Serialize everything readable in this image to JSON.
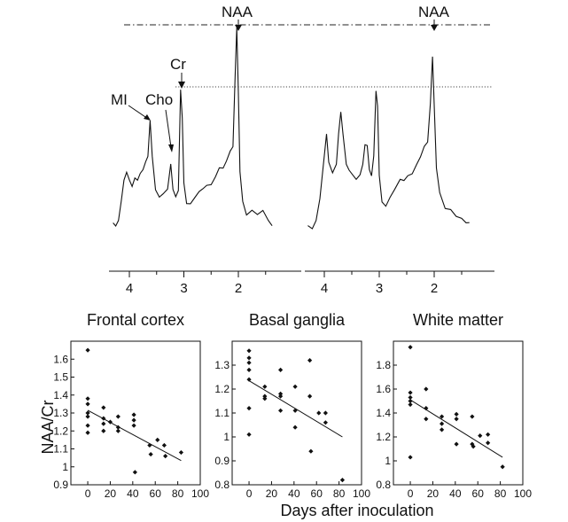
{
  "spectra": {
    "peak_labels": {
      "mi": "MI",
      "cho": "Cho",
      "cr": "Cr",
      "naa_left": "NAA",
      "naa_right": "NAA"
    },
    "axis_ticks": [
      4,
      3,
      2
    ],
    "reference_lines": [
      "NAA peak height",
      "Cr peak height"
    ],
    "left_spectrum": [
      [
        4.3,
        0.12
      ],
      [
        4.25,
        0.11
      ],
      [
        4.2,
        0.15
      ],
      [
        4.15,
        0.28
      ],
      [
        4.1,
        0.42
      ],
      [
        4.05,
        0.48
      ],
      [
        4.0,
        0.43
      ],
      [
        3.95,
        0.4
      ],
      [
        3.9,
        0.46
      ],
      [
        3.85,
        0.44
      ],
      [
        3.8,
        0.47
      ],
      [
        3.75,
        0.5
      ],
      [
        3.7,
        0.56
      ],
      [
        3.66,
        0.62
      ],
      [
        3.62,
        0.88
      ],
      [
        3.58,
        0.62
      ],
      [
        3.52,
        0.35
      ],
      [
        3.45,
        0.3
      ],
      [
        3.38,
        0.32
      ],
      [
        3.3,
        0.38
      ],
      [
        3.24,
        0.56
      ],
      [
        3.2,
        0.38
      ],
      [
        3.15,
        0.3
      ],
      [
        3.1,
        0.35
      ],
      [
        3.06,
        1.08
      ],
      [
        3.03,
        0.9
      ],
      [
        3.0,
        0.42
      ],
      [
        2.95,
        0.28
      ],
      [
        2.88,
        0.25
      ],
      [
        2.8,
        0.3
      ],
      [
        2.72,
        0.33
      ],
      [
        2.65,
        0.38
      ],
      [
        2.58,
        0.4
      ],
      [
        2.5,
        0.42
      ],
      [
        2.42,
        0.45
      ],
      [
        2.35,
        0.52
      ],
      [
        2.28,
        0.5
      ],
      [
        2.22,
        0.58
      ],
      [
        2.15,
        0.65
      ],
      [
        2.1,
        0.7
      ],
      [
        2.06,
        1.18
      ],
      [
        2.03,
        1.55
      ],
      [
        2.0,
        1.05
      ],
      [
        1.97,
        0.5
      ],
      [
        1.92,
        0.28
      ],
      [
        1.85,
        0.2
      ],
      [
        1.75,
        0.21
      ],
      [
        1.65,
        0.18
      ],
      [
        1.55,
        0.19
      ],
      [
        1.45,
        0.14
      ],
      [
        1.38,
        0.1
      ]
    ],
    "right_spectrum": [
      [
        4.3,
        0.1
      ],
      [
        4.22,
        0.09
      ],
      [
        4.15,
        0.15
      ],
      [
        4.08,
        0.3
      ],
      [
        4.0,
        0.6
      ],
      [
        3.96,
        0.76
      ],
      [
        3.92,
        0.56
      ],
      [
        3.85,
        0.5
      ],
      [
        3.78,
        0.56
      ],
      [
        3.74,
        0.78
      ],
      [
        3.7,
        0.92
      ],
      [
        3.66,
        0.76
      ],
      [
        3.6,
        0.54
      ],
      [
        3.55,
        0.52
      ],
      [
        3.48,
        0.48
      ],
      [
        3.42,
        0.45
      ],
      [
        3.35,
        0.46
      ],
      [
        3.3,
        0.54
      ],
      [
        3.26,
        0.68
      ],
      [
        3.22,
        0.7
      ],
      [
        3.18,
        0.52
      ],
      [
        3.14,
        0.48
      ],
      [
        3.1,
        0.6
      ],
      [
        3.06,
        1.08
      ],
      [
        3.03,
        0.96
      ],
      [
        3.0,
        0.48
      ],
      [
        2.95,
        0.28
      ],
      [
        2.88,
        0.26
      ],
      [
        2.8,
        0.3
      ],
      [
        2.72,
        0.36
      ],
      [
        2.62,
        0.42
      ],
      [
        2.55,
        0.44
      ],
      [
        2.48,
        0.47
      ],
      [
        2.4,
        0.5
      ],
      [
        2.32,
        0.54
      ],
      [
        2.25,
        0.6
      ],
      [
        2.18,
        0.66
      ],
      [
        2.12,
        0.72
      ],
      [
        2.07,
        1.0
      ],
      [
        2.03,
        1.36
      ],
      [
        2.0,
        0.98
      ],
      [
        1.96,
        0.52
      ],
      [
        1.9,
        0.32
      ],
      [
        1.8,
        0.23
      ],
      [
        1.7,
        0.22
      ],
      [
        1.6,
        0.19
      ],
      [
        1.5,
        0.15
      ],
      [
        1.42,
        0.12
      ],
      [
        1.36,
        0.1
      ]
    ]
  },
  "plots": {
    "ylabel": "NAA/Cr",
    "xlabel": "Days after inoculation",
    "x_ticks": [
      0,
      20,
      40,
      60,
      80,
      100
    ]
  },
  "chart_data": [
    {
      "type": "scatter",
      "title": "Frontal cortex",
      "xlim": [
        -15,
        100
      ],
      "ylim": [
        0.9,
        1.7
      ],
      "y_ticks": [
        "0.9",
        "1",
        "1.1",
        "1.2",
        "1.3",
        "1.4",
        "1.5",
        "1.6"
      ],
      "points": [
        [
          0,
          1.65
        ],
        [
          0,
          1.38
        ],
        [
          0,
          1.35
        ],
        [
          0,
          1.3
        ],
        [
          0,
          1.28
        ],
        [
          0,
          1.23
        ],
        [
          0,
          1.19
        ],
        [
          14,
          1.33
        ],
        [
          14,
          1.27
        ],
        [
          14,
          1.2
        ],
        [
          14,
          1.24
        ],
        [
          20,
          1.25
        ],
        [
          27,
          1.28
        ],
        [
          27,
          1.22
        ],
        [
          27,
          1.2
        ],
        [
          41,
          1.29
        ],
        [
          41,
          1.26
        ],
        [
          41,
          1.23
        ],
        [
          42,
          0.97
        ],
        [
          55,
          1.12
        ],
        [
          56,
          1.07
        ],
        [
          62,
          1.15
        ],
        [
          68,
          1.12
        ],
        [
          69,
          1.06
        ],
        [
          83,
          1.08
        ]
      ],
      "trend": [
        [
          0,
          1.315
        ],
        [
          83,
          1.035
        ]
      ]
    },
    {
      "type": "scatter",
      "title": "Basal ganglia",
      "xlim": [
        -15,
        100
      ],
      "ylim": [
        0.8,
        1.4
      ],
      "y_ticks": [
        "0.8",
        "0.9",
        "1",
        "1.1",
        "1.2",
        "1.3"
      ],
      "points": [
        [
          0,
          1.36
        ],
        [
          0,
          1.33
        ],
        [
          0,
          1.31
        ],
        [
          0,
          1.28
        ],
        [
          0,
          1.24
        ],
        [
          0,
          1.12
        ],
        [
          0,
          1.01
        ],
        [
          14,
          1.21
        ],
        [
          14,
          1.17
        ],
        [
          14,
          1.16
        ],
        [
          28,
          1.28
        ],
        [
          28,
          1.18
        ],
        [
          28,
          1.17
        ],
        [
          28,
          1.11
        ],
        [
          41,
          1.21
        ],
        [
          41,
          1.11
        ],
        [
          41,
          1.04
        ],
        [
          54,
          1.32
        ],
        [
          54,
          1.17
        ],
        [
          55,
          0.94
        ],
        [
          62,
          1.1
        ],
        [
          68,
          1.06
        ],
        [
          68,
          1.1
        ],
        [
          83,
          0.82
        ]
      ],
      "trend": [
        [
          0,
          1.235
        ],
        [
          83,
          1.0
        ]
      ]
    },
    {
      "type": "scatter",
      "title": "White matter",
      "xlim": [
        -15,
        100
      ],
      "ylim": [
        0.8,
        2.0
      ],
      "y_ticks": [
        "0.8",
        "1",
        "1.2",
        "1.4",
        "1.6",
        "1.8"
      ],
      "points": [
        [
          0,
          1.95
        ],
        [
          0,
          1.57
        ],
        [
          0,
          1.53
        ],
        [
          0,
          1.5
        ],
        [
          0,
          1.47
        ],
        [
          0,
          1.03
        ],
        [
          14,
          1.6
        ],
        [
          14,
          1.44
        ],
        [
          14,
          1.35
        ],
        [
          28,
          1.37
        ],
        [
          28,
          1.31
        ],
        [
          28,
          1.26
        ],
        [
          41,
          1.39
        ],
        [
          41,
          1.35
        ],
        [
          41,
          1.14
        ],
        [
          55,
          1.37
        ],
        [
          55,
          1.14
        ],
        [
          56,
          1.12
        ],
        [
          62,
          1.21
        ],
        [
          69,
          1.22
        ],
        [
          69,
          1.15
        ],
        [
          82,
          0.95
        ]
      ],
      "trend": [
        [
          0,
          1.51
        ],
        [
          82,
          1.03
        ]
      ]
    }
  ]
}
